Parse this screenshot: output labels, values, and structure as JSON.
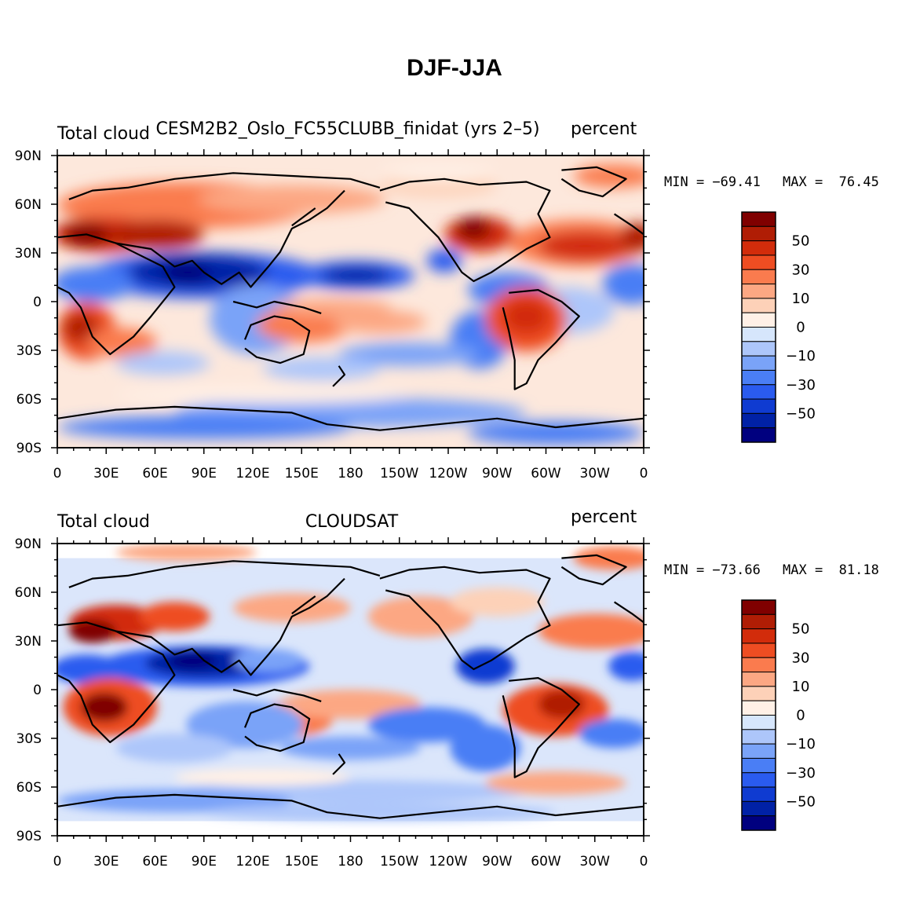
{
  "figure_title": "DJF-JJA",
  "colors": {
    "levels": [
      "#00007f",
      "#0021a6",
      "#0f3bd1",
      "#2a5bef",
      "#4a7ef5",
      "#7aa3f8",
      "#adc6fa",
      "#d6e6fc",
      "#fff0e6",
      "#fdd1b8",
      "#fca783",
      "#fa7b4e",
      "#ee4d22",
      "#d22c0b",
      "#b01d05",
      "#800000"
    ],
    "contour": "#000000"
  },
  "chart_data": [
    {
      "type": "heatmap",
      "title_left": "Total cloud",
      "title_center": "CESM2B2_Oslo_FC55CLUBB_finidat (yrs 2–5)",
      "title_right": "percent",
      "min_label": "MIN = −69.41",
      "max_label": "MAX =  76.45",
      "min_value": -69.41,
      "max_value": 76.45,
      "x_ticks": [
        "0",
        "30E",
        "60E",
        "90E",
        "120E",
        "150E",
        "180",
        "150W",
        "120W",
        "90W",
        "60W",
        "30W",
        "0"
      ],
      "y_ticks": [
        "90N",
        "60N",
        "30N",
        "0",
        "30S",
        "60S",
        "90S"
      ],
      "colorbar_ticks": [
        "50",
        "30",
        "10",
        "0",
        "−10",
        "−30",
        "−50"
      ],
      "colorbar_levels": [
        -70,
        -60,
        -50,
        -40,
        -30,
        -20,
        -10,
        -5,
        0,
        5,
        10,
        20,
        30,
        40,
        50,
        60,
        70
      ]
    },
    {
      "type": "heatmap",
      "title_left": "Total cloud",
      "title_center": "CLOUDSAT",
      "title_right": "percent",
      "min_label": "MIN = −73.66",
      "max_label": "MAX =  81.18",
      "min_value": -73.66,
      "max_value": 81.18,
      "x_ticks": [
        "0",
        "30E",
        "60E",
        "90E",
        "120E",
        "150E",
        "180",
        "150W",
        "120W",
        "90W",
        "60W",
        "30W",
        "0"
      ],
      "y_ticks": [
        "90N",
        "60N",
        "30N",
        "0",
        "30S",
        "60S",
        "90S"
      ],
      "colorbar_ticks": [
        "50",
        "30",
        "10",
        "0",
        "−10",
        "−30",
        "−50"
      ],
      "colorbar_levels": [
        -70,
        -60,
        -50,
        -40,
        -30,
        -20,
        -10,
        -5,
        0,
        5,
        10,
        20,
        30,
        40,
        50,
        60,
        70
      ]
    }
  ]
}
